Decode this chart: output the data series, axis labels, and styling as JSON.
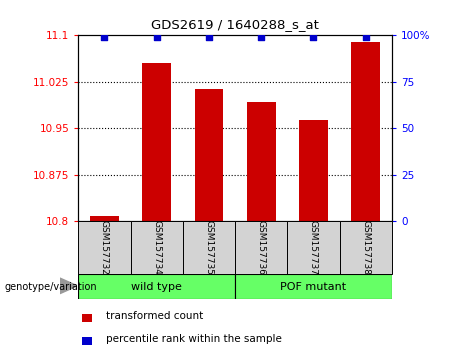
{
  "title": "GDS2619 / 1640288_s_at",
  "samples": [
    "GSM157732",
    "GSM157734",
    "GSM157735",
    "GSM157736",
    "GSM157737",
    "GSM157738"
  ],
  "red_values": [
    10.808,
    11.055,
    11.013,
    10.993,
    10.963,
    11.09
  ],
  "blue_values": [
    99,
    99,
    99,
    99,
    99,
    99
  ],
  "ylim_left": [
    10.8,
    11.1
  ],
  "ylim_right": [
    0,
    100
  ],
  "yticks_left": [
    10.8,
    10.875,
    10.95,
    11.025,
    11.1
  ],
  "yticks_right": [
    0,
    25,
    50,
    75,
    100
  ],
  "ytick_labels_left": [
    "10.8",
    "10.875",
    "10.95",
    "11.025",
    "11.1"
  ],
  "ytick_labels_right": [
    "0",
    "25",
    "50",
    "75",
    "100%"
  ],
  "hlines": [
    10.875,
    10.95,
    11.025
  ],
  "groups": [
    {
      "label": "wild type",
      "indices": [
        0,
        1,
        2
      ],
      "color": "#66FF66"
    },
    {
      "label": "POF mutant",
      "indices": [
        3,
        4,
        5
      ],
      "color": "#66FF66"
    }
  ],
  "group_label": "genotype/variation",
  "bar_color": "#CC0000",
  "dot_color": "#0000CC",
  "bar_width": 0.55,
  "tick_label_bg": "#D3D3D3",
  "legend_red_label": "transformed count",
  "legend_blue_label": "percentile rank within the sample",
  "figsize": [
    4.61,
    3.54
  ],
  "dpi": 100
}
